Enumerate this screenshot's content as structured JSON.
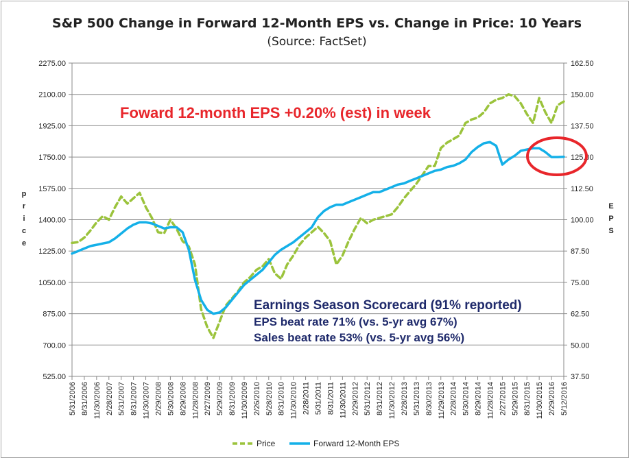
{
  "chart_data": {
    "type": "line",
    "title": "S&P 500 Change in Forward 12-Month EPS vs. Change in Price: 10 Years",
    "subtitle": "(Source: FactSet)",
    "ylabel_left": "Price",
    "ylabel_right": "EPS",
    "ylim_left": [
      525,
      2275
    ],
    "ylim_right": [
      37.5,
      162.5
    ],
    "yticks_left": [
      "525.00",
      "700.00",
      "875.00",
      "1050.00",
      "1225.00",
      "1400.00",
      "1575.00",
      "1750.00",
      "1925.00",
      "2100.00",
      "2275.00"
    ],
    "yticks_right": [
      "37.50",
      "50.00",
      "62.50",
      "75.00",
      "87.50",
      "100.00",
      "112.50",
      "125.00",
      "137.50",
      "150.00",
      "162.50"
    ],
    "xticks": [
      "5/31/2006",
      "8/31/2006",
      "11/30/2006",
      "2/28/2007",
      "5/31/2007",
      "8/31/2007",
      "11/30/2007",
      "2/29/2008",
      "5/30/2008",
      "8/29/2008",
      "11/28/2008",
      "2/27/2009",
      "5/29/2009",
      "8/31/2009",
      "11/30/2009",
      "2/26/2010",
      "5/28/2010",
      "8/31/2010",
      "11/30/2010",
      "2/28/2011",
      "5/31/2011",
      "8/31/2011",
      "11/30/2011",
      "2/29/2012",
      "5/31/2012",
      "8/31/2012",
      "11/30/2012",
      "2/28/2013",
      "5/31/2013",
      "8/30/2013",
      "11/29/2013",
      "2/28/2014",
      "5/30/2014",
      "8/29/2014",
      "11/28/2014",
      "2/27/2015",
      "5/29/2015",
      "8/31/2015",
      "11/30/2015",
      "2/29/2016",
      "5/12/2016"
    ],
    "grid": true,
    "legend_position": "bottom",
    "series": [
      {
        "name": "Price",
        "axis": "left",
        "color": "#9bc33c",
        "style": "dashed",
        "x_index": [
          0,
          0.5,
          1,
          1.5,
          2,
          2.5,
          3,
          3.5,
          4,
          4.5,
          5,
          5.5,
          6,
          6.5,
          7,
          7.5,
          8,
          8.5,
          9,
          9.5,
          10,
          10.5,
          11,
          11.5,
          12,
          12.5,
          13,
          13.5,
          14,
          14.5,
          15,
          15.5,
          16,
          16.5,
          17,
          17.5,
          18,
          18.5,
          19,
          19.5,
          20,
          20.5,
          21,
          21.5,
          22,
          22.5,
          23,
          23.5,
          24,
          24.5,
          25,
          25.5,
          26,
          26.5,
          27,
          27.5,
          28,
          28.5,
          29,
          29.5,
          30,
          30.5,
          31,
          31.5,
          32,
          32.5,
          33,
          33.5,
          34,
          34.5,
          35,
          35.5,
          36,
          36.5,
          37,
          37.5,
          38,
          38.5,
          39,
          39.5,
          40
        ],
        "values": [
          1270,
          1275,
          1300,
          1340,
          1385,
          1420,
          1400,
          1470,
          1530,
          1490,
          1520,
          1550,
          1470,
          1410,
          1330,
          1325,
          1400,
          1350,
          1280,
          1250,
          1150,
          900,
          800,
          740,
          830,
          920,
          960,
          1000,
          1050,
          1080,
          1120,
          1140,
          1180,
          1100,
          1070,
          1150,
          1200,
          1260,
          1300,
          1330,
          1360,
          1325,
          1280,
          1150,
          1200,
          1280,
          1350,
          1410,
          1380,
          1400,
          1410,
          1420,
          1430,
          1470,
          1520,
          1560,
          1600,
          1650,
          1700,
          1700,
          1800,
          1830,
          1850,
          1870,
          1940,
          1960,
          1970,
          2000,
          2050,
          2070,
          2080,
          2100,
          2090,
          2050,
          1990,
          1940,
          2080,
          2000,
          1940,
          2040,
          2060
        ]
      },
      {
        "name": "Forward 12-Month EPS",
        "axis": "right",
        "color": "#14b0e8",
        "style": "solid",
        "x_index": [
          0,
          0.5,
          1,
          1.5,
          2,
          2.5,
          3,
          3.5,
          4,
          4.5,
          5,
          5.5,
          6,
          6.5,
          7,
          7.5,
          8,
          8.5,
          9,
          9.5,
          10,
          10.5,
          11,
          11.5,
          12,
          12.5,
          13,
          13.5,
          14,
          14.5,
          15,
          15.5,
          16,
          16.5,
          17,
          17.5,
          18,
          18.5,
          19,
          19.5,
          20,
          20.5,
          21,
          21.5,
          22,
          22.5,
          23,
          23.5,
          24,
          24.5,
          25,
          25.5,
          26,
          26.5,
          27,
          27.5,
          28,
          28.5,
          29,
          29.5,
          30,
          30.5,
          31,
          31.5,
          32,
          32.5,
          33,
          33.5,
          34,
          34.5,
          35,
          35.5,
          36,
          36.5,
          37,
          37.5,
          38,
          38.5,
          39,
          39.5,
          40
        ],
        "values": [
          86.5,
          87.5,
          88.5,
          89.5,
          90,
          90.5,
          91,
          92.5,
          94.5,
          96.5,
          98,
          99,
          99,
          98.5,
          97.5,
          96.5,
          97,
          97,
          95,
          88,
          76,
          68,
          64,
          62.5,
          63,
          65,
          68,
          71,
          74,
          76,
          78,
          80,
          83,
          86,
          88,
          89.5,
          91,
          93,
          95,
          97,
          101,
          103.5,
          105,
          106,
          106,
          107,
          108,
          109,
          110,
          111,
          111,
          112,
          113,
          114,
          114.5,
          115.5,
          116.5,
          117.5,
          118.5,
          119.5,
          120,
          121,
          121.5,
          122.5,
          124,
          127,
          129,
          130.5,
          131,
          129.5,
          122,
          124,
          125.5,
          127.5,
          128,
          128.5,
          128.5,
          127,
          125,
          125,
          125.1
        ]
      }
    ]
  },
  "annotations": {
    "weekly_eps": "Foward 12-month EPS +0.20% (est) in week",
    "scorecard_title": "Earnings Season Scorecard (91% reported)",
    "eps_beat": "EPS beat rate 71% (vs. 5-yr avg 67%)",
    "sales_beat": "Sales beat rate 53% (vs. 5-yr avg 56%)"
  }
}
